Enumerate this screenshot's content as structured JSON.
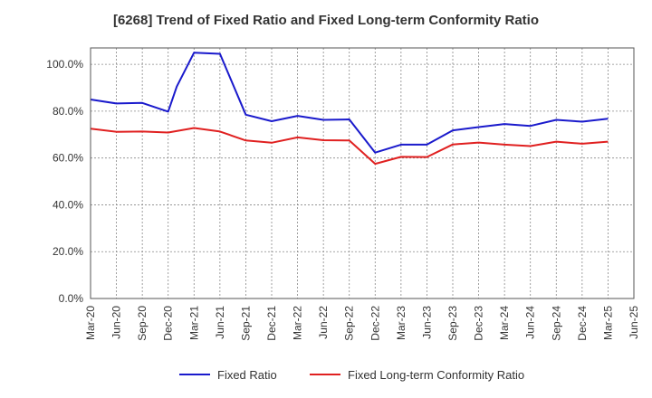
{
  "chart_data": {
    "type": "line",
    "title": "[6268]  Trend of Fixed Ratio and Fixed Long-term Conformity Ratio",
    "xlabel": "",
    "ylabel": "",
    "ylim": [
      0,
      107
    ],
    "y_ticks": [
      0,
      20,
      40,
      60,
      80,
      100
    ],
    "y_tick_labels": [
      "0.0%",
      "20.0%",
      "40.0%",
      "60.0%",
      "80.0%",
      "100.0%"
    ],
    "x_tick_labels": [
      "Mar-20",
      "Jun-20",
      "Sep-20",
      "Dec-20",
      "Mar-21",
      "Jun-21",
      "Sep-21",
      "Dec-21",
      "Mar-22",
      "Jun-22",
      "Sep-22",
      "Dec-22",
      "Mar-23",
      "Jun-23",
      "Sep-23",
      "Dec-23",
      "Mar-24",
      "Jun-24",
      "Sep-24",
      "Dec-24",
      "Mar-25",
      "Jun-25"
    ],
    "grid": true,
    "legend_position": "bottom-center",
    "series": [
      {
        "name": "Fixed Ratio",
        "color": "#1a1acc",
        "x": [
          "Mar-20",
          "Jun-20",
          "Sep-20",
          "Dec-20",
          "Jan-21",
          "Mar-21",
          "Jun-21",
          "Sep-21",
          "Dec-21",
          "Mar-22",
          "Jun-22",
          "Sep-22",
          "Dec-22",
          "Mar-23",
          "Jun-23",
          "Sep-23",
          "Dec-23",
          "Mar-24",
          "Jun-24",
          "Sep-24",
          "Dec-24",
          "Mar-25"
        ],
        "values": [
          85.0,
          83.3,
          83.5,
          79.8,
          90.5,
          105.0,
          104.5,
          78.5,
          75.7,
          78.0,
          76.3,
          76.5,
          62.3,
          65.7,
          65.7,
          71.8,
          73.2,
          74.5,
          73.7,
          76.3,
          75.5,
          76.8
        ]
      },
      {
        "name": "Fixed Long-term Conformity Ratio",
        "color": "#e02020",
        "x": [
          "Mar-20",
          "Jun-20",
          "Sep-20",
          "Dec-20",
          "Mar-21",
          "Jun-21",
          "Sep-21",
          "Dec-21",
          "Mar-22",
          "Jun-22",
          "Sep-22",
          "Dec-22",
          "Mar-23",
          "Jun-23",
          "Sep-23",
          "Dec-23",
          "Mar-24",
          "Jun-24",
          "Sep-24",
          "Dec-24",
          "Mar-25"
        ],
        "values": [
          72.5,
          71.2,
          71.3,
          70.9,
          72.8,
          71.3,
          67.5,
          66.5,
          68.8,
          67.6,
          67.5,
          57.5,
          60.5,
          60.4,
          65.8,
          66.6,
          65.7,
          65.1,
          67.0,
          66.1,
          67.0
        ]
      }
    ]
  }
}
